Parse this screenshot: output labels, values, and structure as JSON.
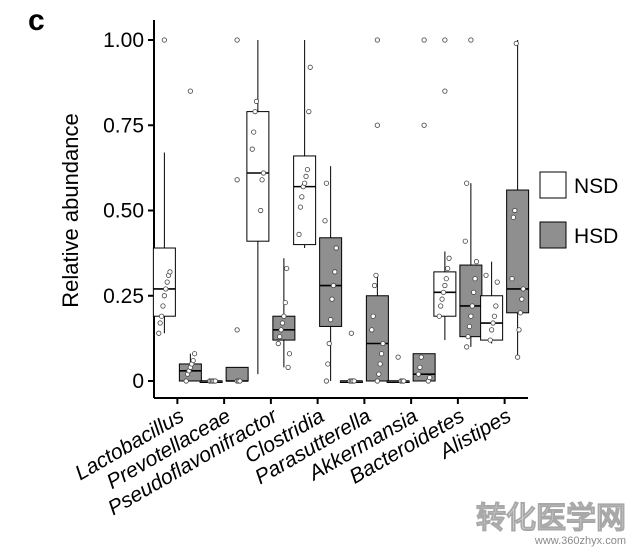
{
  "panel_label": "c",
  "watermark": {
    "main": "转化医学网",
    "url": "www.360zhyx.com"
  },
  "colors": {
    "nsd_fill": "#ffffff",
    "hsd_fill": "#8f8f8f",
    "stroke": "#000000",
    "point": "#ffffff"
  },
  "chart_data": {
    "type": "box",
    "ylabel": "Relative abundance",
    "ylim": [
      0,
      1
    ],
    "yticks": [
      0,
      0.25,
      0.5,
      0.75,
      1.0
    ],
    "ytick_labels": [
      "0",
      "0.25",
      "0.50",
      "0.75",
      "1.00"
    ],
    "categories": [
      "Lactobacillus",
      "Prevotellaceae",
      "Pseudoflavonifractor",
      "Clostridia",
      "Parasutterella",
      "Akkermansia",
      "Bacteroidetes",
      "Alistipes"
    ],
    "legend": {
      "position": "right",
      "entries": [
        "NSD",
        "HSD"
      ]
    },
    "series": [
      {
        "name": "NSD",
        "boxes": [
          {
            "min": 0.14,
            "q1": 0.19,
            "median": 0.27,
            "q3": 0.39,
            "max": 0.67,
            "outliers": [
              1.0
            ],
            "points": [
              0.14,
              0.17,
              0.19,
              0.22,
              0.25,
              0.27,
              0.29,
              0.31,
              0.32
            ]
          },
          {
            "min": 0.0,
            "q1": 0.0,
            "median": 0.0,
            "q3": 0.0,
            "max": 0.0,
            "outliers": [],
            "points": [
              0.0,
              0.0,
              0.0,
              0.0,
              0.0
            ]
          },
          {
            "min": 0.02,
            "q1": 0.41,
            "median": 0.61,
            "q3": 0.79,
            "max": 1.0,
            "outliers": [],
            "points": [
              0.5,
              0.59,
              0.61,
              0.68,
              0.73,
              0.79,
              0.82
            ]
          },
          {
            "min": 0.39,
            "q1": 0.4,
            "median": 0.57,
            "q3": 0.66,
            "max": 1.0,
            "outliers": [],
            "points": [
              0.43,
              0.51,
              0.54,
              0.57,
              0.58,
              0.6,
              0.62,
              0.79,
              0.92
            ]
          },
          {
            "min": 0.0,
            "q1": 0.0,
            "median": 0.0,
            "q3": 0.0,
            "max": 0.0,
            "outliers": [
              0.14
            ],
            "points": [
              0.0,
              0.0,
              0.0,
              0.0
            ]
          },
          {
            "min": 0.0,
            "q1": 0.0,
            "median": 0.0,
            "q3": 0.0,
            "max": 0.0,
            "outliers": [
              0.07
            ],
            "points": [
              0.0,
              0.0,
              0.0
            ]
          },
          {
            "min": 0.12,
            "q1": 0.19,
            "median": 0.26,
            "q3": 0.32,
            "max": 0.38,
            "outliers": [
              0.85,
              1.0
            ],
            "points": [
              0.19,
              0.22,
              0.24,
              0.26,
              0.28,
              0.3,
              0.33,
              0.36
            ]
          },
          {
            "min": 0.11,
            "q1": 0.12,
            "median": 0.17,
            "q3": 0.25,
            "max": 0.35,
            "outliers": [],
            "points": [
              0.12,
              0.15,
              0.17,
              0.19,
              0.22,
              0.29,
              0.31
            ]
          }
        ]
      },
      {
        "name": "HSD",
        "boxes": [
          {
            "min": 0.0,
            "q1": 0.0,
            "median": 0.03,
            "q3": 0.05,
            "max": 0.08,
            "outliers": [
              0.85
            ],
            "points": [
              0.0,
              0.02,
              0.03,
              0.04,
              0.05,
              0.06,
              0.08
            ]
          },
          {
            "min": 0.0,
            "q1": 0.0,
            "median": 0.0,
            "q3": 0.04,
            "max": 0.04,
            "outliers": [
              0.15,
              0.59,
              1.0
            ],
            "points": [
              0.0,
              0.0,
              0.0
            ]
          },
          {
            "min": 0.04,
            "q1": 0.12,
            "median": 0.15,
            "q3": 0.19,
            "max": 0.36,
            "outliers": [],
            "points": [
              0.04,
              0.08,
              0.11,
              0.13,
              0.15,
              0.17,
              0.19,
              0.23,
              0.33
            ]
          },
          {
            "min": 0.0,
            "q1": 0.16,
            "median": 0.28,
            "q3": 0.42,
            "max": 0.63,
            "outliers": [],
            "points": [
              0.0,
              0.05,
              0.11,
              0.18,
              0.24,
              0.28,
              0.32,
              0.39,
              0.47,
              0.58
            ]
          },
          {
            "min": 0.0,
            "q1": 0.0,
            "median": 0.11,
            "q3": 0.25,
            "max": 0.31,
            "outliers": [
              0.75,
              1.0
            ],
            "points": [
              0.0,
              0.02,
              0.05,
              0.08,
              0.11,
              0.15,
              0.19,
              0.28,
              0.31
            ]
          },
          {
            "min": 0.0,
            "q1": 0.0,
            "median": 0.02,
            "q3": 0.08,
            "max": 0.08,
            "outliers": [
              0.75,
              1.0
            ],
            "points": [
              0.0,
              0.01,
              0.02,
              0.04,
              0.07
            ]
          },
          {
            "min": 0.1,
            "q1": 0.13,
            "median": 0.22,
            "q3": 0.34,
            "max": 0.58,
            "outliers": [
              1.0
            ],
            "points": [
              0.1,
              0.13,
              0.16,
              0.19,
              0.22,
              0.26,
              0.3,
              0.35,
              0.41,
              0.58
            ]
          },
          {
            "min": 0.07,
            "q1": 0.2,
            "median": 0.27,
            "q3": 0.56,
            "max": 1.0,
            "outliers": [],
            "points": [
              0.07,
              0.15,
              0.2,
              0.24,
              0.27,
              0.3,
              0.48,
              0.5,
              0.99
            ]
          }
        ]
      }
    ]
  }
}
